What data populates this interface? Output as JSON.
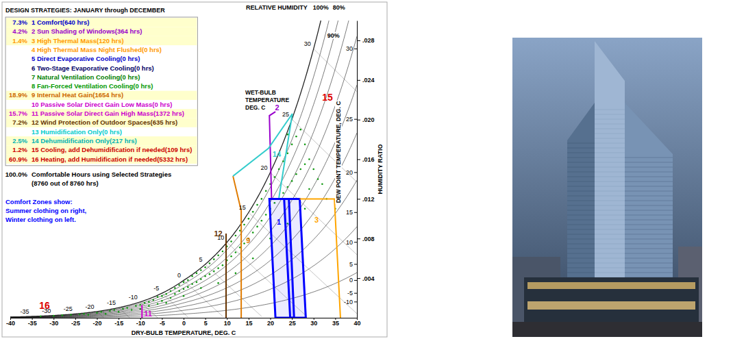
{
  "chart_data": {
    "type": "psychrometric",
    "title": "DESIGN STRATEGIES: JANUARY through DECEMBER",
    "xlabel": "DRY-BULB TEMPERATURE, DEG. C",
    "ylabel": "HUMIDITY RATIO",
    "xlim": [
      -40,
      40
    ],
    "xticks": [
      -40,
      -35,
      -30,
      -25,
      -20,
      -15,
      -10,
      -5,
      0,
      5,
      10,
      15,
      20,
      25,
      30,
      35,
      40
    ],
    "ylim": [
      0,
      0.03
    ],
    "yticks": [
      {
        "value": 0.004,
        "label": ".004"
      },
      {
        "value": 0.008,
        "label": ".008"
      },
      {
        "value": 0.012,
        "label": ".012"
      },
      {
        "value": 0.016,
        "label": ".016"
      },
      {
        "value": 0.02,
        "label": ".020"
      },
      {
        "value": 0.024,
        "label": ".024"
      },
      {
        "value": 0.028,
        "label": ".028"
      }
    ],
    "grid": false,
    "relative_humidity": {
      "title": "RELATIVE HUMIDITY",
      "values": [
        10,
        20,
        30,
        40,
        50,
        60,
        70,
        80,
        90,
        100
      ],
      "top_labels": [
        {
          "value": 100,
          "label": "100%"
        },
        {
          "value": 80,
          "label": "80%"
        }
      ],
      "inline_labels": [
        {
          "value": 90,
          "label": "90%"
        }
      ]
    },
    "wet_bulb": {
      "title_lines": [
        "WET-BULB",
        "TEMPERATURE",
        "DEG. C"
      ],
      "values": [
        -35,
        -30,
        -25,
        -20,
        -15,
        -10,
        -5,
        0,
        5,
        10,
        15,
        20,
        25,
        30
      ]
    },
    "dew_point": {
      "title": "DEW POINT TEMPERATURE, DEG. C",
      "values": [
        -10,
        -5,
        0,
        5,
        10,
        15,
        20,
        25,
        30
      ]
    },
    "strategies": [
      {
        "pct": "7.3%",
        "label": "1 Comfort(640 hrs)",
        "color": "#0000cc"
      },
      {
        "pct": "4.2%",
        "label": "2 Sun Shading of Windows(364 hrs)",
        "color": "#9900cc"
      },
      {
        "pct": "1.4%",
        "label": "3 High Thermal Mass(120 hrs)",
        "color": "#ff9900"
      },
      {
        "label": "4 High Thermal Mass Night Flushed(0 hrs)",
        "color": "#ff9900"
      },
      {
        "label": "5 Direct Evaporative Cooling(0 hrs)",
        "color": "#0000cc"
      },
      {
        "label": "6 Two-Stage Evaporative Cooling(0 hrs)",
        "color": "#000066"
      },
      {
        "label": "7 Natural Ventilation Cooling(0 hrs)",
        "color": "#008000"
      },
      {
        "label": "8 Fan-Forced Ventilation Cooling(0 hrs)",
        "color": "#009900"
      },
      {
        "pct": "18.9%",
        "label": "9 Internal Heat Gain(1654 hrs)",
        "color": "#cc6600"
      },
      {
        "label": "10 Passive Solar Direct Gain Low Mass(0 hrs)",
        "color": "#cc00cc"
      },
      {
        "pct": "15.7%",
        "label": "11 Passive Solar Direct Gain High Mass(1372 hrs)",
        "color": "#cc00cc"
      },
      {
        "pct": "7.2%",
        "label": "12 Wind Protection of Outdoor Spaces(635 hrs)",
        "color": "#663300"
      },
      {
        "label": "13 Humidification Only(0 hrs)",
        "color": "#00cccc"
      },
      {
        "pct": "2.5%",
        "label": "14 Dehumidification Only(217 hrs)",
        "color": "#00b3b3"
      },
      {
        "pct": "1.2%",
        "label": "15 Cooling, add Dehumidification if needed(109 hrs)",
        "color": "#cc0000"
      },
      {
        "pct": "60.9%",
        "label": "16 Heating, add Humidification if needed(5332 hrs)",
        "color": "#cc0000"
      }
    ],
    "summary": {
      "pct": "100.0%",
      "label": "Comfortable Hours using Selected Strategies",
      "hours": "(8760 out of 8760 hrs)"
    },
    "note": {
      "color": "#0000ff",
      "lines": [
        "Comfort Zones show:",
        "Summer clothing on right,",
        "Winter clothing on left."
      ]
    },
    "zones": [
      {
        "label": "1",
        "color": "#0000ff",
        "at": [
          22.0,
          0.0097
        ],
        "shapes": [
          {
            "closed": true,
            "points": [
              [
                19.8,
                0.012
              ],
              [
                24.3,
                0.012
              ],
              [
                25.5,
                0
              ],
              [
                21.2,
                0
              ]
            ]
          },
          {
            "closed": true,
            "points": [
              [
                23.2,
                0.012
              ],
              [
                26.8,
                0.012
              ],
              [
                28.2,
                0
              ],
              [
                24.6,
                0
              ]
            ]
          }
        ]
      },
      {
        "label": "2",
        "color": "#9900cc",
        "at": [
          21.6,
          0.0212
        ],
        "shapes": [
          {
            "closed": false,
            "points": [
              [
                20.3,
                0.0121
              ],
              [
                19.8,
                0.0204
              ],
              [
                21.2,
                0.0208
              ]
            ]
          }
        ]
      },
      {
        "label": "3",
        "color": "#ffa500",
        "at": [
          30.7,
          0.0099
        ],
        "shapes": [
          {
            "closed": false,
            "points": [
              [
                26.8,
                0.012
              ],
              [
                34.8,
                0.012
              ],
              [
                36.2,
                0
              ]
            ]
          }
        ]
      },
      {
        "label": "9",
        "color": "#e07b00",
        "at": [
          14.9,
          0.0078
        ],
        "shapes": [
          {
            "closed": false,
            "points": [
              [
                11.4,
                0.0143
              ],
              [
                13.3,
                0.0108
              ],
              [
                13.3,
                0
              ]
            ]
          }
        ]
      },
      {
        "label": "11",
        "color": "#cc00cc",
        "at": [
          -8.2,
          0.0004
        ],
        "shapes": [
          {
            "closed": false,
            "points": [
              [
                -9.6,
                0
              ],
              [
                -9.6,
                0.0013
              ]
            ]
          }
        ]
      },
      {
        "label": "12",
        "color": "#663300",
        "at": [
          8.0,
          0.0085
        ],
        "shapes": [
          {
            "closed": false,
            "points": [
              [
                9.8,
                0
              ],
              [
                9.8,
                0.0085
              ]
            ]
          }
        ]
      },
      {
        "label": "14",
        "color": "#33cccc",
        "at": [
          21.5,
          0.0165
        ],
        "shapes": [
          {
            "closed": false,
            "points": [
              [
                11.4,
                0.0143
              ],
              [
                19.6,
                0.0171
              ],
              [
                25.1,
                0.0206
              ],
              [
                22.0,
                0.0121
              ]
            ]
          }
        ]
      },
      {
        "label": "15",
        "color": "#dd0000",
        "at": [
          33.2,
          0.0222
        ]
      },
      {
        "label": "16",
        "color": "#dd0000",
        "at": [
          -32.1,
          0.0012
        ]
      }
    ],
    "scatter": {
      "color": "#119911",
      "x": [
        -33,
        -30,
        -28,
        -26,
        -24,
        -23,
        -22,
        -20,
        -19,
        -18,
        -17,
        -16,
        -15,
        -14,
        -13,
        -12,
        -11,
        -10,
        -10,
        -9,
        -8,
        -8,
        -7,
        -6,
        -6,
        -5,
        -5,
        -4,
        -3,
        -3,
        -2,
        -2,
        -1,
        -1,
        0,
        0,
        1,
        1,
        2,
        2,
        3,
        3,
        4,
        4,
        5,
        5,
        6,
        6,
        7,
        7,
        8,
        8,
        9,
        9,
        10,
        10,
        11,
        11,
        12,
        12,
        13,
        13,
        14,
        14,
        15,
        15,
        16,
        16,
        17,
        17,
        18,
        18,
        19,
        19,
        20,
        20,
        21,
        21,
        22,
        22,
        23,
        23,
        24,
        24,
        25,
        25,
        26,
        26,
        27,
        27,
        28,
        28,
        29,
        29,
        30,
        31,
        32,
        33,
        35,
        12,
        16,
        20,
        24,
        28,
        8,
        4,
        0,
        -4,
        24
      ],
      "y": [
        0.00015,
        0.0002,
        0.00025,
        0.0003,
        0.00035,
        0.0004,
        0.0003,
        0.0005,
        0.0006,
        0.0004,
        0.0007,
        0.0008,
        0.0006,
        0.0009,
        0.001,
        0.0008,
        0.0012,
        0.0013,
        0.0009,
        0.0015,
        0.0012,
        0.0016,
        0.0018,
        0.0014,
        0.0021,
        0.0022,
        0.0017,
        0.0024,
        0.0027,
        0.002,
        0.003,
        0.0024,
        0.0033,
        0.0027,
        0.0036,
        0.0029,
        0.0038,
        0.0031,
        0.0042,
        0.0034,
        0.0045,
        0.0036,
        0.0048,
        0.0039,
        0.0051,
        0.0042,
        0.0055,
        0.0044,
        0.0059,
        0.0047,
        0.0063,
        0.005,
        0.0067,
        0.0053,
        0.0072,
        0.0058,
        0.0077,
        0.0062,
        0.0083,
        0.0066,
        0.0088,
        0.0071,
        0.0094,
        0.0075,
        0.01,
        0.008,
        0.0107,
        0.0086,
        0.0114,
        0.0092,
        0.012,
        0.0098,
        0.0128,
        0.0104,
        0.0135,
        0.011,
        0.0142,
        0.0116,
        0.015,
        0.012,
        0.0158,
        0.0126,
        0.0166,
        0.0132,
        0.0175,
        0.0138,
        0.0183,
        0.0145,
        0.019,
        0.015,
        0.0175,
        0.0155,
        0.016,
        0.013,
        0.015,
        0.014,
        0.0135,
        0.012,
        0.011,
        0.0045,
        0.006,
        0.008,
        0.0095,
        0.011,
        0.0035,
        0.003,
        0.0022,
        0.0015,
        0.0185
      ]
    }
  }
}
